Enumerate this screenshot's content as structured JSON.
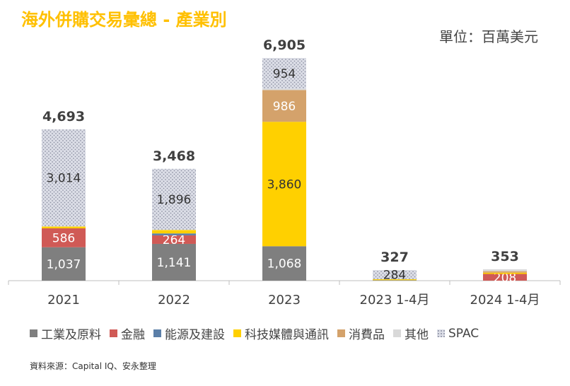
{
  "title": "海外併購交易彙總 - 產業別",
  "unit_label": "單位：百萬美元",
  "source": "資料來源：Capital IQ、安永整理",
  "colors": {
    "industrial": "#7f7f7f",
    "finance": "#d05a56",
    "energy": "#5b7fa8",
    "tech": "#ffd000",
    "consumer": "#d4a26b",
    "other": "#d9d9d9",
    "spac": "#d9dce6"
  },
  "chart_data": {
    "type": "bar",
    "stacked": true,
    "title": "海外併購交易彙總 - 產業別",
    "unit": "單位：百萬美元",
    "categories": [
      "2021",
      "2022",
      "2023",
      "2023 1-4月",
      "2024 1-4月"
    ],
    "totals": [
      "4,693",
      "3,468",
      "6,905",
      "327",
      "353"
    ],
    "ylim": [
      0,
      7500
    ],
    "series": [
      {
        "key": "industrial",
        "name": "工業及原料",
        "values": [
          1037,
          1141,
          1068,
          15,
          0
        ],
        "labels": [
          "1,037",
          "1,141",
          "1,068",
          null,
          null
        ]
      },
      {
        "key": "finance",
        "name": "金融",
        "values": [
          586,
          264,
          0,
          0,
          208
        ],
        "labels": [
          "586",
          "264",
          null,
          null,
          "208"
        ]
      },
      {
        "key": "energy",
        "name": "能源及建設",
        "values": [
          0,
          60,
          0,
          0,
          0
        ],
        "labels": [
          null,
          null,
          null,
          null,
          null
        ]
      },
      {
        "key": "tech",
        "name": "科技媒體與通訊",
        "values": [
          56,
          107,
          3860,
          28,
          40
        ],
        "labels": [
          null,
          null,
          "3,860",
          null,
          null
        ]
      },
      {
        "key": "consumer",
        "name": "消費品",
        "values": [
          0,
          0,
          986,
          0,
          45
        ],
        "labels": [
          null,
          null,
          "986",
          null,
          null
        ]
      },
      {
        "key": "other",
        "name": "其他",
        "values": [
          0,
          0,
          37,
          0,
          60
        ],
        "labels": [
          null,
          null,
          null,
          null,
          null
        ]
      },
      {
        "key": "spac",
        "name": "SPAC",
        "values": [
          3014,
          1896,
          954,
          284,
          0
        ],
        "labels": [
          "3,014",
          "1,896",
          "954",
          "284",
          null
        ]
      }
    ]
  }
}
